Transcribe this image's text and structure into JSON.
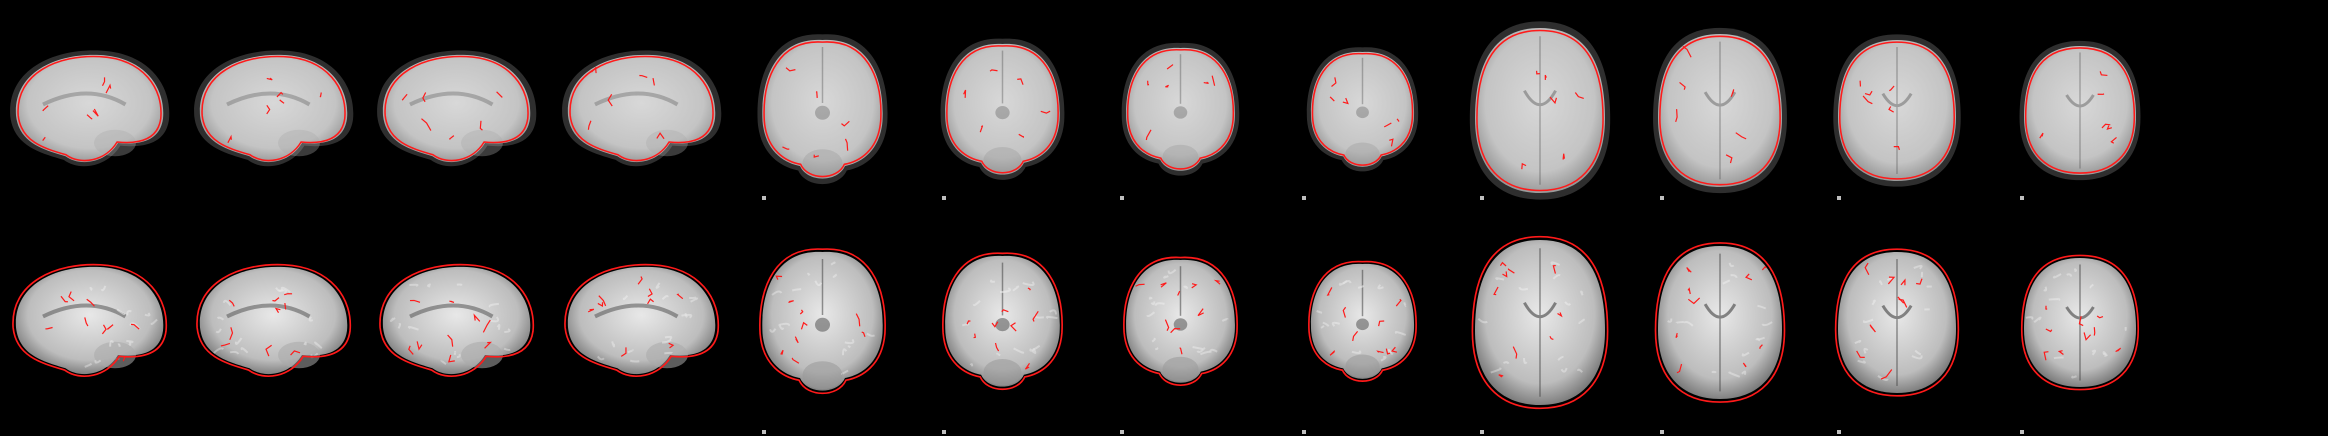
{
  "figure": {
    "background": "#000000",
    "overlay_color": "#ff1a1a",
    "rows": [
      {
        "name": "functional-epi-row",
        "appearance": "blurry-epi",
        "slices": [
          {
            "plane": "sagittal"
          },
          {
            "plane": "sagittal"
          },
          {
            "plane": "sagittal"
          },
          {
            "plane": "sagittal"
          },
          {
            "plane": "coronal"
          },
          {
            "plane": "coronal"
          },
          {
            "plane": "coronal"
          },
          {
            "plane": "coronal"
          },
          {
            "plane": "axial"
          },
          {
            "plane": "axial"
          },
          {
            "plane": "axial"
          },
          {
            "plane": "axial"
          }
        ]
      },
      {
        "name": "template-anatomy-row",
        "appearance": "sharp-t1",
        "slices": [
          {
            "plane": "sagittal"
          },
          {
            "plane": "sagittal"
          },
          {
            "plane": "sagittal"
          },
          {
            "plane": "sagittal"
          },
          {
            "plane": "coronal"
          },
          {
            "plane": "coronal"
          },
          {
            "plane": "coronal"
          },
          {
            "plane": "coronal"
          },
          {
            "plane": "axial"
          },
          {
            "plane": "axial"
          },
          {
            "plane": "axial"
          },
          {
            "plane": "axial"
          }
        ]
      }
    ]
  }
}
